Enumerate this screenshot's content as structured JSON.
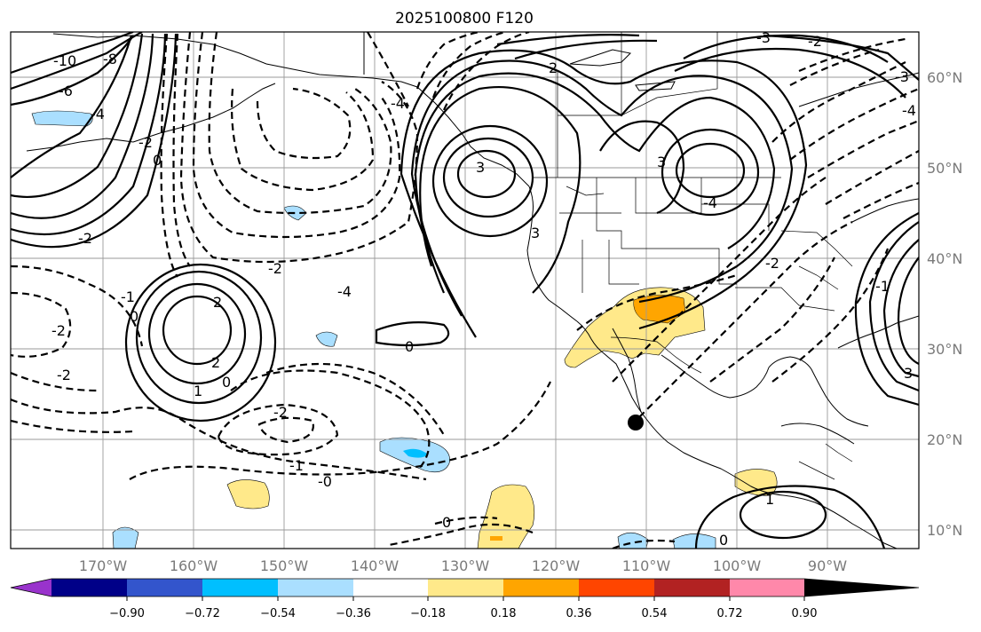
{
  "title": "2025100800 F120",
  "lon_labels": [
    "170°W",
    "160°W",
    "150°W",
    "140°W",
    "130°W",
    "120°W",
    "110°W",
    "100°W",
    "90°W"
  ],
  "lat_labels": [
    "60°N",
    "50°N",
    "40°N",
    "30°N",
    "20°N",
    "10°N"
  ],
  "colorbar": {
    "ticks": [
      "−0.90",
      "−0.72",
      "−0.54",
      "−0.36",
      "−0.18",
      "0.18",
      "0.36",
      "0.54",
      "0.72",
      "0.90"
    ],
    "colors": [
      "#9933cc",
      "#000088",
      "#3355cc",
      "#00bfff",
      "#aadfff",
      "#ffffff",
      "#ffe98a",
      "#ffa500",
      "#ff4500",
      "#b22222",
      "#ff88aa"
    ]
  },
  "contour_labels": [
    "-10",
    "-6",
    "-8",
    "-4",
    "0",
    "-2",
    "-2",
    "-1",
    "0",
    "-2",
    "-2",
    "2",
    "2",
    "1",
    "0",
    "-2",
    "-1",
    "-0",
    "0",
    "1",
    "0",
    "0",
    "-2",
    "3",
    "3",
    "-4",
    "3",
    "2",
    "-2",
    "-3",
    "-4",
    "-2",
    "-4",
    "-3",
    "-1",
    "3",
    "-4"
  ]
}
